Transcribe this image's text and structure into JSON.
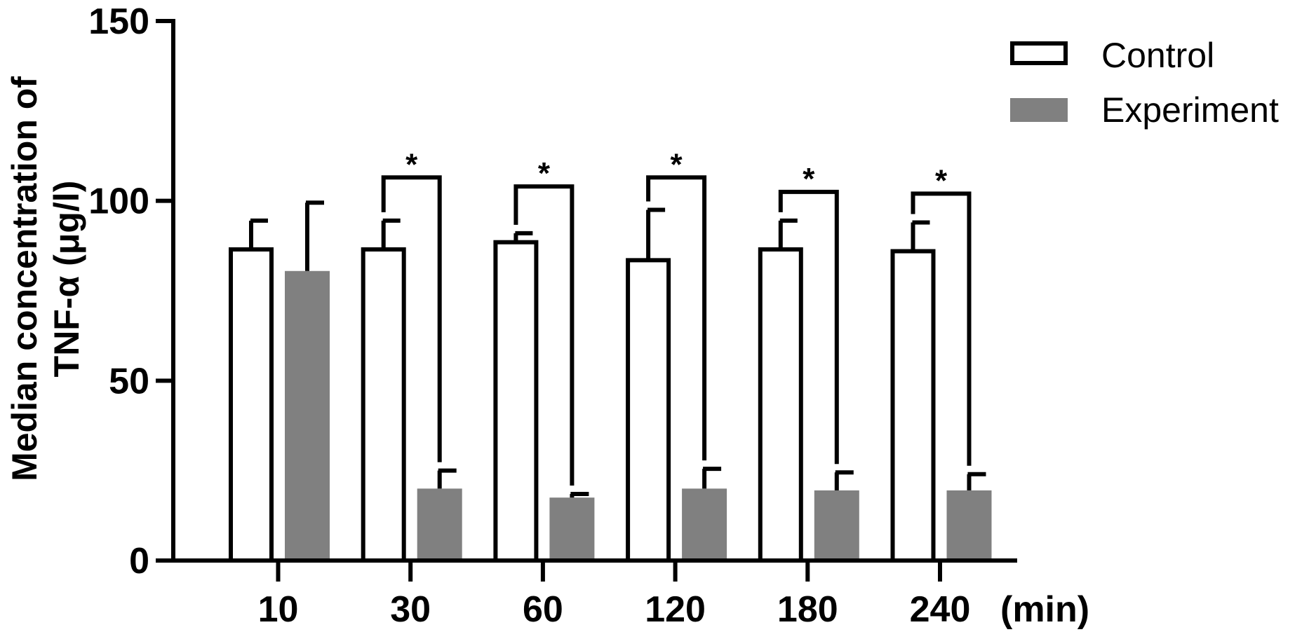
{
  "chart_data": {
    "type": "bar",
    "categories": [
      "10",
      "30",
      "60",
      "120",
      "180",
      "240"
    ],
    "x_unit_label": "(min)",
    "ylabel_lines": [
      "Median concentration of",
      "TNF-α (μg/l)"
    ],
    "ylim": [
      0,
      150
    ],
    "yticks": [
      0,
      50,
      100,
      150
    ],
    "grid": false,
    "legend_position": "top-right",
    "series": [
      {
        "name": "Control",
        "style": "outline",
        "color": "#000000",
        "values": [
          86.5,
          86.5,
          88.5,
          83.5,
          86.5,
          86.0
        ],
        "errors": [
          8.0,
          8.0,
          2.5,
          14.0,
          8.0,
          8.0
        ]
      },
      {
        "name": "Experiment",
        "style": "filled",
        "color": "#808080",
        "values": [
          80.5,
          20.0,
          17.5,
          20.0,
          19.5,
          19.5
        ],
        "errors": [
          19.0,
          5.0,
          1.0,
          5.5,
          5.0,
          4.5
        ]
      }
    ],
    "significance": [
      {
        "category": "30",
        "label": "*",
        "bracket_y": 106.5
      },
      {
        "category": "60",
        "label": "*",
        "bracket_y": 104.0
      },
      {
        "category": "120",
        "label": "*",
        "bracket_y": 106.5
      },
      {
        "category": "180",
        "label": "*",
        "bracket_y": 102.5
      },
      {
        "category": "240",
        "label": "*",
        "bracket_y": 102.0
      }
    ]
  }
}
